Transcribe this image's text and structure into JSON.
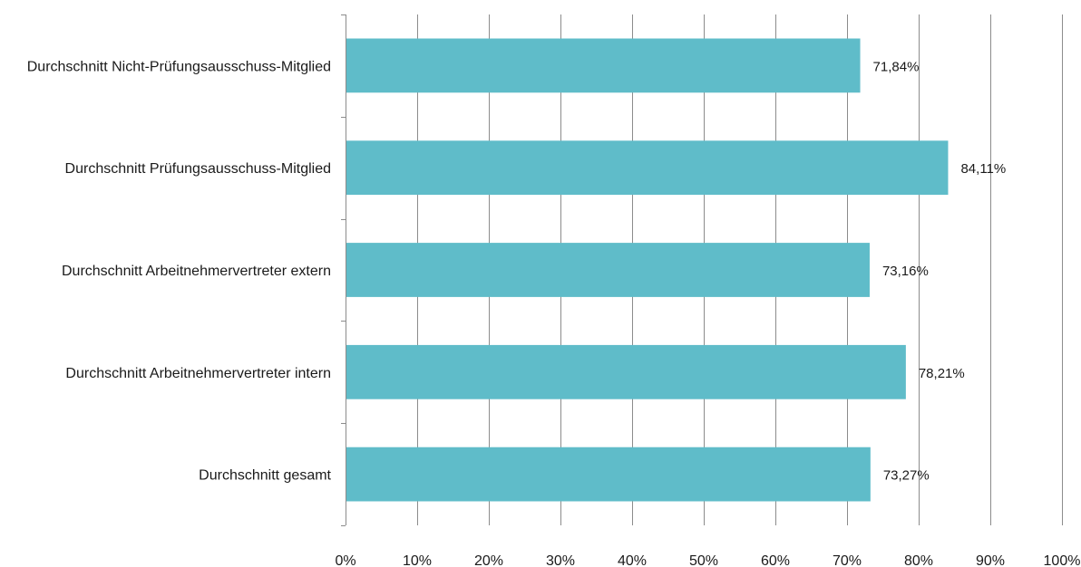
{
  "chart_data": {
    "type": "bar",
    "orientation": "horizontal",
    "categories": [
      "Durchschnitt Nicht-Prüfungsausschuss-Mitglied",
      "Durchschnitt Prüfungsausschuss-Mitglied",
      "Durchschnitt Arbeitnehmervertreter extern",
      "Durchschnitt Arbeitnehmervertreter intern",
      "Durchschnitt gesamt"
    ],
    "values": [
      71.84,
      84.11,
      73.16,
      78.21,
      73.27
    ],
    "value_labels": [
      "71,84%",
      "84,11%",
      "73,16%",
      "78,21%",
      "73,27%"
    ],
    "xlim": [
      0,
      100
    ],
    "x_ticks": [
      0,
      10,
      20,
      30,
      40,
      50,
      60,
      70,
      80,
      90,
      100
    ],
    "x_tick_labels": [
      "0%",
      "10%",
      "20%",
      "30%",
      "40%",
      "50%",
      "60%",
      "70%",
      "80%",
      "90%",
      "100%"
    ],
    "grid": "vertical",
    "legend": "none",
    "bar_color": "#5fbcc9",
    "grid_color": "#8c8c8c",
    "axis_color": "#8c8c8c",
    "title": "",
    "xlabel": "",
    "ylabel": ""
  }
}
